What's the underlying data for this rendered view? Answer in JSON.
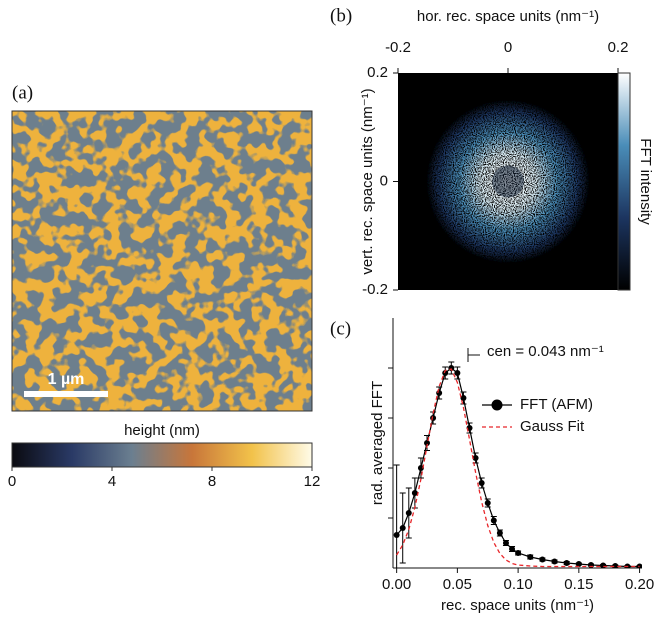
{
  "chart_data": [
    {
      "type": "image",
      "panel": "(a)",
      "scale_bar": "1 µm",
      "colorbar": {
        "label": "height (nm)",
        "lim": [
          0,
          12
        ],
        "ticks": [
          0,
          4,
          8,
          12
        ],
        "colors": [
          "#0a0a10",
          "#2a3a66",
          "#6b7f90",
          "#c8763a",
          "#f2c24a",
          "#fffbe8"
        ]
      },
      "colors": {
        "background": "#6d7f8d",
        "features": "#eeb23c"
      }
    },
    {
      "type": "heatmap",
      "panel": "(b)",
      "xlabel": "hor. rec. space units (nm⁻¹)",
      "ylabel": "vert. rec. space units (nm⁻¹)",
      "xlim": [
        -0.2,
        0.2
      ],
      "ylim": [
        -0.2,
        0.2
      ],
      "xticks": [
        -0.2,
        0,
        0.2
      ],
      "yticks": [
        -0.2,
        0,
        0.2
      ],
      "colorbar": {
        "label": "FFT intensity",
        "colors": [
          "#000000",
          "#1c3560",
          "#4a8db8",
          "#ffffff"
        ]
      }
    },
    {
      "type": "line",
      "panel": "(c)",
      "xlabel": "rec. space units (nm⁻¹)",
      "ylabel": "rad. averaged FFT",
      "annotation": "cen = 0.043 nm⁻¹",
      "x": [
        0,
        0.005,
        0.01,
        0.015,
        0.02,
        0.025,
        0.03,
        0.035,
        0.04,
        0.045,
        0.05,
        0.055,
        0.06,
        0.065,
        0.07,
        0.075,
        0.08,
        0.085,
        0.09,
        0.095,
        0.1,
        0.11,
        0.12,
        0.13,
        0.14,
        0.15,
        0.16,
        0.17,
        0.18,
        0.19,
        0.2
      ],
      "series": [
        {
          "name": "FFT (AFM)",
          "color": "#000000",
          "marker": "circle",
          "values": [
            0.66,
            0.8,
            1.1,
            1.5,
            2.0,
            2.5,
            3.0,
            3.5,
            3.9,
            4.0,
            3.9,
            3.4,
            2.8,
            2.2,
            1.7,
            1.3,
            0.95,
            0.7,
            0.5,
            0.38,
            0.3,
            0.22,
            0.17,
            0.13,
            0.1,
            0.08,
            0.06,
            0.05,
            0.04,
            0.03,
            0.03
          ],
          "errors": [
            1.4,
            0.7,
            0.5,
            0.3,
            0.2,
            0.15,
            0.12,
            0.12,
            0.12,
            0.12,
            0.12,
            0.12,
            0.1,
            0.1,
            0.1,
            0.08,
            0.08,
            0.06,
            0.05,
            0.05,
            0.04,
            0.04,
            0.03,
            0.03,
            0.03,
            0.02,
            0.02,
            0.02,
            0.02,
            0.02,
            0.02
          ]
        },
        {
          "name": "Gauss Fit",
          "color": "#e8262a",
          "dashed": true,
          "values": [
            0.26,
            0.46,
            0.77,
            1.21,
            1.78,
            2.44,
            3.09,
            3.63,
            3.95,
            3.98,
            3.71,
            3.21,
            2.57,
            1.91,
            1.32,
            0.85,
            0.51,
            0.29,
            0.16,
            0.09,
            0.06,
            0.04,
            0.03,
            0.03,
            0.03,
            0.03,
            0.03,
            0.03,
            0.03,
            0.03,
            0.03
          ]
        }
      ],
      "xlim": [
        -0.003,
        0.202
      ],
      "ylim": [
        0,
        5
      ],
      "xticks": [
        {
          "value": 0,
          "label": "0.00"
        },
        {
          "value": 0.05,
          "label": "0.05"
        },
        {
          "value": 0.1,
          "label": "0.10"
        },
        {
          "value": 0.15,
          "label": "0.15"
        },
        {
          "value": 0.2,
          "label": "0.20"
        }
      ],
      "yticks": [
        1,
        2,
        3,
        4
      ]
    }
  ]
}
